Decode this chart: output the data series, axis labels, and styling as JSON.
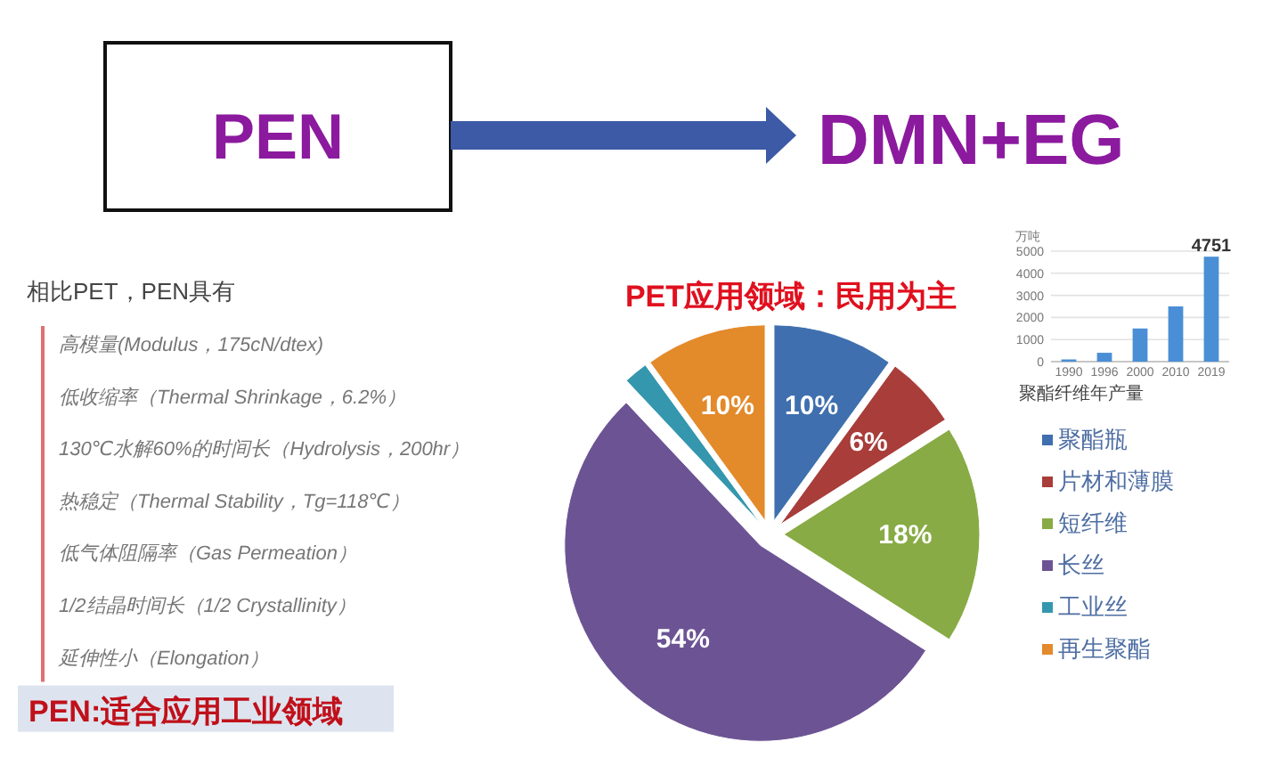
{
  "chart_data": [
    {
      "type": "other",
      "annotations": [
        "PEN",
        "DMN+EG"
      ]
    },
    {
      "type": "other",
      "title": "相比PET，PEN具有",
      "annotations": [
        "高模量(Modulus，175cN/dtex)",
        "低收缩率（Thermal Shrinkage，6.2%）",
        "130℃水解60%的时间长（Hydrolysis，200hr）",
        "热稳定（Thermal Stability，Tg=118℃）",
        "低气体阻隔率（Gas Permeation）",
        "1/2结晶时间长（1/2 Crystallinity）",
        "延伸性小（Elongation）",
        "PEN:适合应用工业领域"
      ]
    },
    {
      "type": "bar",
      "xlabel": "聚酯纤维年产量",
      "ylabel": "万吨",
      "categories": [
        "1990",
        "1996",
        "2000",
        "2010",
        "2019"
      ],
      "values": [
        100,
        400,
        1500,
        2500,
        4751
      ],
      "color": "#4a8fd6",
      "ylim": [
        0,
        5000
      ],
      "yticks": [
        0,
        1000,
        2000,
        3000,
        4000,
        5000
      ],
      "grid": "y",
      "value_labels": [
        null,
        null,
        null,
        null,
        "4751"
      ]
    },
    {
      "type": "pie",
      "title": "PET应用领域：民用为主",
      "categories": [
        "聚酯瓶",
        "片材和薄膜",
        "短纤维",
        "长丝",
        "工业丝",
        "再生聚酯"
      ],
      "values": [
        10,
        6,
        18,
        54,
        2,
        10
      ],
      "colors": [
        "#3f6fae",
        "#a83d3a",
        "#88ab45",
        "#6c5494",
        "#3597ae",
        "#e38a2b"
      ],
      "value_labels": [
        "10%",
        "6%",
        "18%",
        "54%",
        null,
        "10%"
      ],
      "legend": "right"
    }
  ]
}
